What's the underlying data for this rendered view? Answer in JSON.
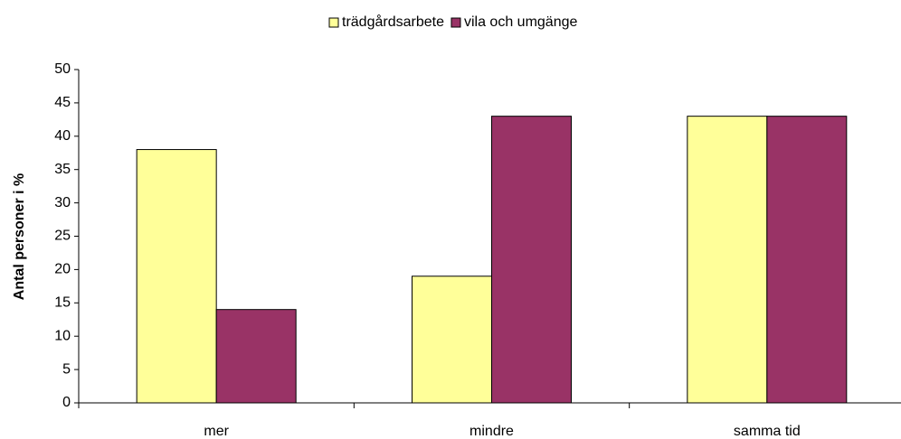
{
  "chart_data": {
    "type": "bar",
    "categories": [
      "mer",
      "mindre",
      "samma tid"
    ],
    "series": [
      {
        "name": "trädgårdsarbete",
        "color": "#ffff99",
        "values": [
          38,
          19,
          43
        ]
      },
      {
        "name": "vila och umgänge",
        "color": "#993366",
        "values": [
          14,
          43,
          43
        ]
      }
    ],
    "ylabel": "Antal personer i %",
    "ylim": [
      0,
      50
    ],
    "yticks": [
      0,
      5,
      10,
      15,
      20,
      25,
      30,
      35,
      40,
      45,
      50
    ],
    "grid": false,
    "legend": "top"
  }
}
